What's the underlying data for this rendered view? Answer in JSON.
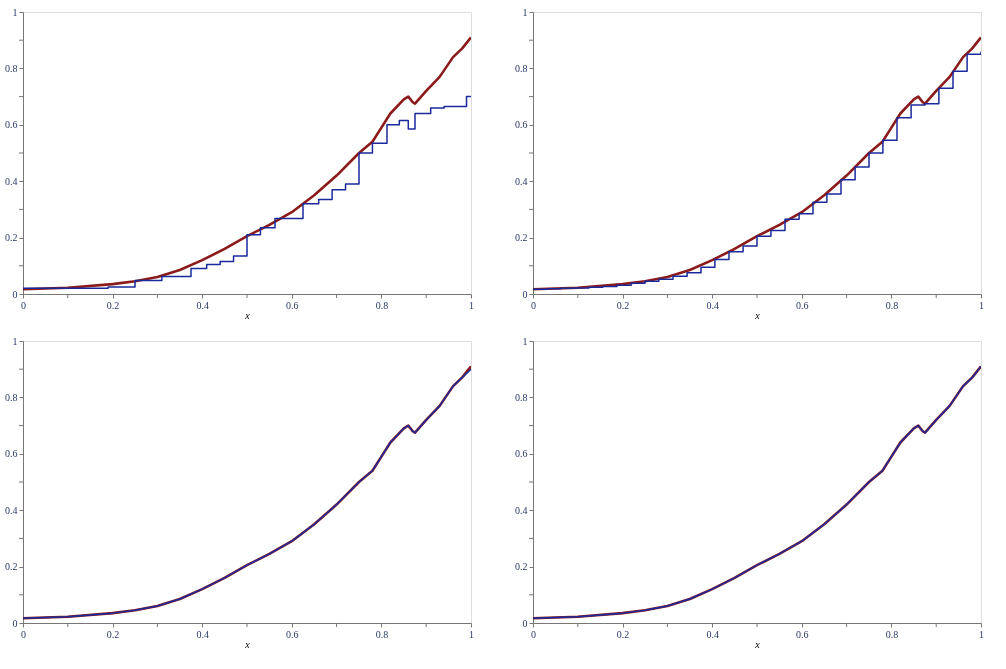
{
  "chart_data": [
    {
      "type": "line",
      "xlabel": "x",
      "xlim": [
        0,
        1
      ],
      "ylim": [
        0,
        1
      ],
      "xticks": [
        0,
        {
          "value": 0.1,
          "label": null
        },
        0.2,
        {
          "value": 0.3,
          "label": null
        },
        0.4,
        {
          "value": 0.5,
          "label": null
        },
        0.6,
        {
          "value": 0.7,
          "label": null
        },
        0.8,
        {
          "value": 0.9,
          "label": null
        },
        1
      ],
      "yticks": [
        0,
        {
          "value": 0.1,
          "label": null
        },
        0.2,
        {
          "value": 0.3,
          "label": null
        },
        0.4,
        {
          "value": 0.5,
          "label": null
        },
        0.6,
        {
          "value": 0.7,
          "label": null
        },
        0.8,
        {
          "value": 0.9,
          "label": null
        },
        1
      ],
      "grid": false,
      "line_style": "solid",
      "marker": "none",
      "series": [
        {
          "type": "line",
          "color": "#8b1a1a",
          "x": [
            0,
            0.1,
            0.2,
            0.25,
            0.3,
            0.35,
            0.4,
            0.45,
            0.5,
            0.55,
            0.6,
            0.65,
            0.7,
            0.75,
            0.78,
            0.8,
            0.82,
            0.85,
            0.86,
            0.87,
            0.875,
            0.9,
            0.93,
            0.96,
            0.98,
            1.0
          ],
          "values": [
            0.017,
            0.022,
            0.035,
            0.045,
            0.06,
            0.085,
            0.12,
            0.16,
            0.205,
            0.245,
            0.29,
            0.35,
            0.42,
            0.5,
            0.54,
            0.59,
            0.64,
            0.69,
            0.7,
            0.68,
            0.675,
            0.72,
            0.77,
            0.84,
            0.87,
            0.91
          ]
        },
        {
          "type": "step",
          "color": "#1a2a9c",
          "x": [
            0,
            0.19,
            0.25,
            0.31,
            0.375,
            0.41,
            0.44,
            0.47,
            0.5,
            0.53,
            0.5625,
            0.625,
            0.66,
            0.69,
            0.72,
            0.75,
            0.78,
            0.8125,
            0.84,
            0.86,
            0.875,
            0.91,
            0.94,
            0.97,
            0.99,
            1.0
          ],
          "values": [
            0.02,
            0.025,
            0.048,
            0.062,
            0.09,
            0.105,
            0.115,
            0.135,
            0.21,
            0.235,
            0.268,
            0.32,
            0.335,
            0.37,
            0.39,
            0.5,
            0.535,
            0.6,
            0.615,
            0.585,
            0.64,
            0.66,
            0.665,
            0.665,
            0.7,
            0.7
          ]
        }
      ]
    },
    {
      "type": "line",
      "xlabel": "x",
      "xlim": [
        0,
        1
      ],
      "ylim": [
        0,
        1
      ],
      "xticks": [
        0,
        {
          "value": 0.1,
          "label": null
        },
        0.2,
        {
          "value": 0.3,
          "label": null
        },
        0.4,
        {
          "value": 0.5,
          "label": null
        },
        0.6,
        {
          "value": 0.7,
          "label": null
        },
        0.8,
        {
          "value": 0.9,
          "label": null
        },
        1
      ],
      "yticks": [
        0,
        {
          "value": 0.1,
          "label": null
        },
        0.2,
        {
          "value": 0.3,
          "label": null
        },
        0.4,
        {
          "value": 0.5,
          "label": null
        },
        0.6,
        {
          "value": 0.7,
          "label": null
        },
        0.8,
        {
          "value": 0.9,
          "label": null
        },
        1
      ],
      "grid": false,
      "line_style": "solid",
      "marker": "none",
      "series": [
        {
          "type": "line",
          "color": "#8b1a1a",
          "x": [
            0,
            0.1,
            0.2,
            0.25,
            0.3,
            0.35,
            0.4,
            0.45,
            0.5,
            0.55,
            0.6,
            0.65,
            0.7,
            0.75,
            0.78,
            0.8,
            0.82,
            0.85,
            0.86,
            0.87,
            0.875,
            0.9,
            0.93,
            0.96,
            0.98,
            1.0
          ],
          "values": [
            0.017,
            0.022,
            0.035,
            0.045,
            0.06,
            0.085,
            0.12,
            0.16,
            0.205,
            0.245,
            0.29,
            0.35,
            0.42,
            0.5,
            0.54,
            0.59,
            0.64,
            0.69,
            0.7,
            0.68,
            0.675,
            0.72,
            0.77,
            0.84,
            0.87,
            0.91
          ]
        },
        {
          "type": "step",
          "color": "#1a2a9c",
          "x": [
            0,
            0.031,
            0.0625,
            0.094,
            0.125,
            0.156,
            0.1875,
            0.219,
            0.25,
            0.281,
            0.3125,
            0.344,
            0.375,
            0.406,
            0.4375,
            0.469,
            0.5,
            0.531,
            0.5625,
            0.594,
            0.625,
            0.656,
            0.6875,
            0.719,
            0.75,
            0.781,
            0.8125,
            0.844,
            0.875,
            0.906,
            0.9375,
            0.969,
            1.0
          ],
          "values": [
            0.017,
            0.019,
            0.02,
            0.021,
            0.024,
            0.027,
            0.031,
            0.038,
            0.045,
            0.052,
            0.063,
            0.075,
            0.095,
            0.122,
            0.15,
            0.17,
            0.205,
            0.225,
            0.265,
            0.285,
            0.325,
            0.355,
            0.405,
            0.45,
            0.5,
            0.545,
            0.625,
            0.67,
            0.675,
            0.73,
            0.79,
            0.85,
            0.86
          ]
        }
      ]
    },
    {
      "type": "line",
      "xlabel": "x",
      "xlim": [
        0,
        1
      ],
      "ylim": [
        0,
        1
      ],
      "xticks": [
        0,
        {
          "value": 0.1,
          "label": null
        },
        0.2,
        {
          "value": 0.3,
          "label": null
        },
        0.4,
        {
          "value": 0.5,
          "label": null
        },
        0.6,
        {
          "value": 0.7,
          "label": null
        },
        0.8,
        {
          "value": 0.9,
          "label": null
        },
        1
      ],
      "yticks": [
        0,
        {
          "value": 0.1,
          "label": null
        },
        0.2,
        {
          "value": 0.3,
          "label": null
        },
        0.4,
        {
          "value": 0.5,
          "label": null
        },
        0.6,
        {
          "value": 0.7,
          "label": null
        },
        0.8,
        {
          "value": 0.9,
          "label": null
        },
        1
      ],
      "grid": false,
      "line_style": "solid",
      "marker": "none",
      "series": [
        {
          "type": "line",
          "color": "#8b1a1a",
          "x": [
            0,
            0.1,
            0.2,
            0.25,
            0.3,
            0.35,
            0.4,
            0.45,
            0.5,
            0.55,
            0.6,
            0.65,
            0.7,
            0.75,
            0.78,
            0.8,
            0.82,
            0.85,
            0.86,
            0.87,
            0.875,
            0.9,
            0.93,
            0.96,
            0.98,
            1.0
          ],
          "values": [
            0.017,
            0.022,
            0.035,
            0.045,
            0.06,
            0.085,
            0.12,
            0.16,
            0.205,
            0.245,
            0.29,
            0.35,
            0.42,
            0.5,
            0.54,
            0.59,
            0.64,
            0.69,
            0.7,
            0.68,
            0.675,
            0.72,
            0.77,
            0.84,
            0.87,
            0.91
          ]
        },
        {
          "type": "line",
          "color": "#1a2a9c",
          "x": [
            0,
            0.1,
            0.2,
            0.25,
            0.3,
            0.35,
            0.4,
            0.45,
            0.5,
            0.55,
            0.6,
            0.65,
            0.7,
            0.75,
            0.78,
            0.8,
            0.82,
            0.85,
            0.86,
            0.87,
            0.875,
            0.9,
            0.93,
            0.96,
            0.98,
            1.0
          ],
          "values": [
            0.017,
            0.022,
            0.035,
            0.045,
            0.06,
            0.085,
            0.12,
            0.16,
            0.205,
            0.245,
            0.29,
            0.35,
            0.42,
            0.5,
            0.54,
            0.59,
            0.64,
            0.69,
            0.7,
            0.68,
            0.675,
            0.72,
            0.77,
            0.84,
            0.87,
            0.9
          ]
        }
      ]
    },
    {
      "type": "line",
      "xlabel": "x",
      "xlim": [
        0,
        1
      ],
      "ylim": [
        0,
        1
      ],
      "xticks": [
        0,
        {
          "value": 0.1,
          "label": null
        },
        0.2,
        {
          "value": 0.3,
          "label": null
        },
        0.4,
        {
          "value": 0.5,
          "label": null
        },
        0.6,
        {
          "value": 0.7,
          "label": null
        },
        0.8,
        {
          "value": 0.9,
          "label": null
        },
        1
      ],
      "yticks": [
        0,
        {
          "value": 0.1,
          "label": null
        },
        0.2,
        {
          "value": 0.3,
          "label": null
        },
        0.4,
        {
          "value": 0.5,
          "label": null
        },
        0.6,
        {
          "value": 0.7,
          "label": null
        },
        0.8,
        {
          "value": 0.9,
          "label": null
        },
        1
      ],
      "grid": false,
      "line_style": "solid",
      "marker": "none",
      "series": [
        {
          "type": "line",
          "color": "#8b1a1a",
          "x": [
            0,
            0.1,
            0.2,
            0.25,
            0.3,
            0.35,
            0.4,
            0.45,
            0.5,
            0.55,
            0.6,
            0.65,
            0.7,
            0.75,
            0.78,
            0.8,
            0.82,
            0.85,
            0.86,
            0.87,
            0.875,
            0.9,
            0.93,
            0.96,
            0.98,
            1.0
          ],
          "values": [
            0.017,
            0.022,
            0.035,
            0.045,
            0.06,
            0.085,
            0.12,
            0.16,
            0.205,
            0.245,
            0.29,
            0.35,
            0.42,
            0.5,
            0.54,
            0.59,
            0.64,
            0.69,
            0.7,
            0.68,
            0.675,
            0.72,
            0.77,
            0.84,
            0.87,
            0.91
          ]
        },
        {
          "type": "line",
          "color": "#1a2a9c",
          "x": [
            0,
            0.1,
            0.2,
            0.25,
            0.3,
            0.35,
            0.4,
            0.45,
            0.5,
            0.55,
            0.6,
            0.65,
            0.7,
            0.75,
            0.78,
            0.8,
            0.82,
            0.85,
            0.86,
            0.87,
            0.875,
            0.9,
            0.93,
            0.96,
            0.98,
            1.0
          ],
          "values": [
            0.017,
            0.022,
            0.035,
            0.045,
            0.06,
            0.085,
            0.12,
            0.16,
            0.205,
            0.245,
            0.29,
            0.35,
            0.42,
            0.5,
            0.54,
            0.59,
            0.64,
            0.69,
            0.7,
            0.68,
            0.675,
            0.72,
            0.77,
            0.84,
            0.87,
            0.91
          ]
        }
      ]
    }
  ]
}
